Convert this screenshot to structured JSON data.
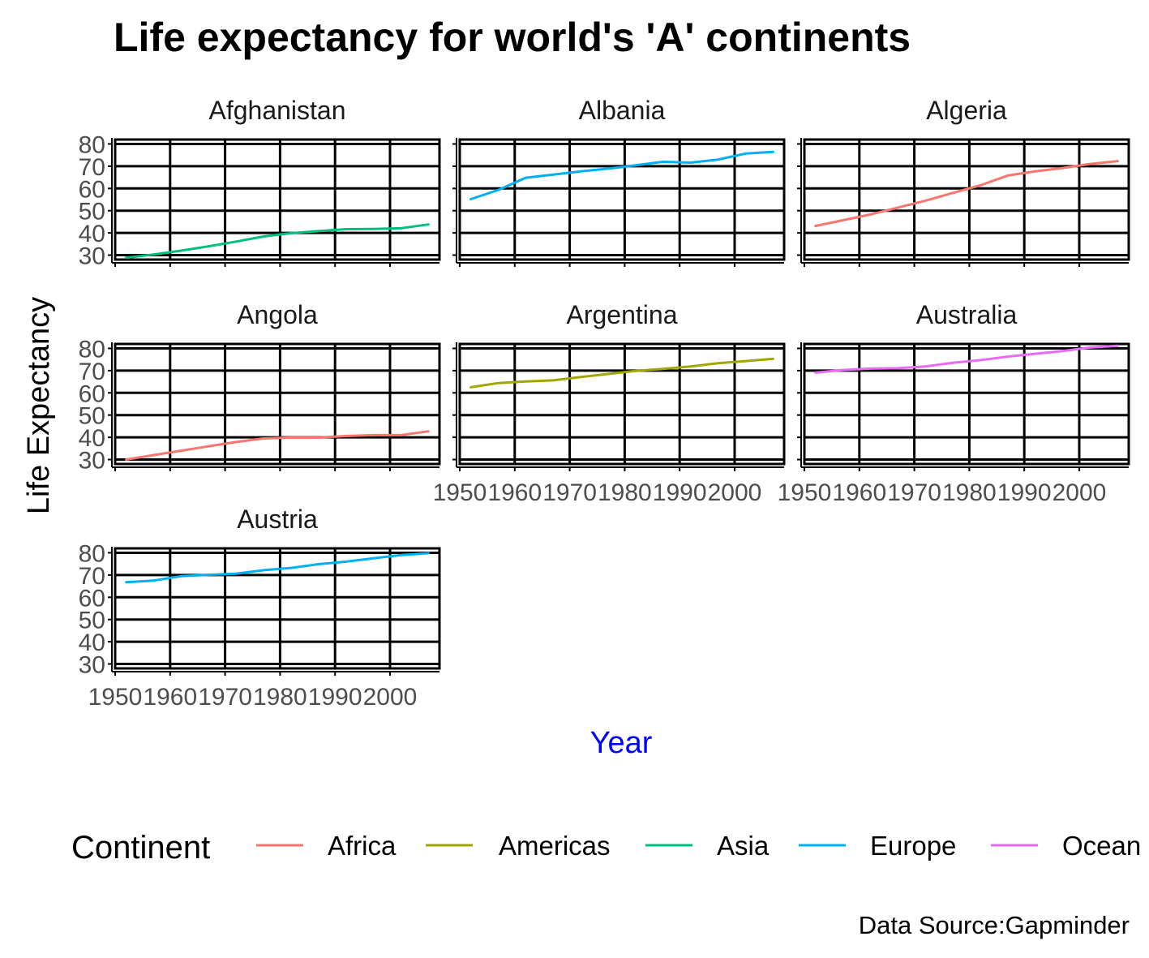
{
  "chart_data": {
    "type": "line",
    "title": "Life expectancy for world's 'A' continents",
    "xlabel": "Year",
    "ylabel": "Life Expectancy",
    "caption": "Data Source:Gapminder",
    "xlim": [
      1950,
      2009
    ],
    "ylim": [
      28,
      82
    ],
    "x_ticks": [
      1950,
      1960,
      1970,
      1980,
      1990,
      2000
    ],
    "y_ticks": [
      30,
      40,
      50,
      60,
      70,
      80
    ],
    "x": [
      1952,
      1957,
      1962,
      1967,
      1972,
      1977,
      1982,
      1987,
      1992,
      1997,
      2002,
      2007
    ],
    "grid": true,
    "legend": {
      "title": "Continent",
      "position": "bottom",
      "entries": [
        {
          "name": "Africa",
          "color": "#F8766D"
        },
        {
          "name": "Americas",
          "color": "#A3A500"
        },
        {
          "name": "Asia",
          "color": "#00BF7D"
        },
        {
          "name": "Europe",
          "color": "#00B0F6"
        },
        {
          "name": "Oceania",
          "label": "Ocean",
          "color": "#E76BF3"
        }
      ]
    },
    "facets": [
      {
        "name": "Afghanistan",
        "continent": "Asia",
        "values": [
          28.8,
          30.3,
          32.0,
          34.0,
          36.1,
          38.4,
          39.9,
          40.8,
          41.7,
          41.8,
          42.1,
          43.8
        ]
      },
      {
        "name": "Albania",
        "continent": "Europe",
        "values": [
          55.2,
          59.3,
          64.8,
          66.2,
          67.7,
          68.9,
          70.4,
          72.0,
          71.6,
          73.0,
          75.7,
          76.4
        ]
      },
      {
        "name": "Algeria",
        "continent": "Africa",
        "values": [
          43.1,
          45.7,
          48.3,
          51.4,
          54.5,
          58.0,
          61.4,
          65.8,
          67.7,
          69.2,
          71.0,
          72.3
        ]
      },
      {
        "name": "Angola",
        "continent": "Africa",
        "values": [
          30.0,
          32.0,
          34.0,
          36.0,
          37.9,
          39.5,
          39.9,
          39.9,
          40.6,
          41.0,
          41.0,
          42.7
        ]
      },
      {
        "name": "Argentina",
        "continent": "Americas",
        "values": [
          62.5,
          64.4,
          65.1,
          65.6,
          67.1,
          68.5,
          69.9,
          70.8,
          71.9,
          73.3,
          74.3,
          75.3
        ]
      },
      {
        "name": "Australia",
        "continent": "Oceania",
        "values": [
          69.1,
          70.3,
          70.9,
          71.1,
          71.9,
          73.5,
          74.7,
          76.3,
          77.6,
          78.8,
          80.4,
          81.2
        ]
      },
      {
        "name": "Austria",
        "continent": "Europe",
        "values": [
          66.8,
          67.5,
          69.5,
          70.1,
          70.6,
          72.2,
          73.2,
          74.9,
          76.0,
          77.5,
          79.0,
          79.8
        ]
      }
    ]
  }
}
